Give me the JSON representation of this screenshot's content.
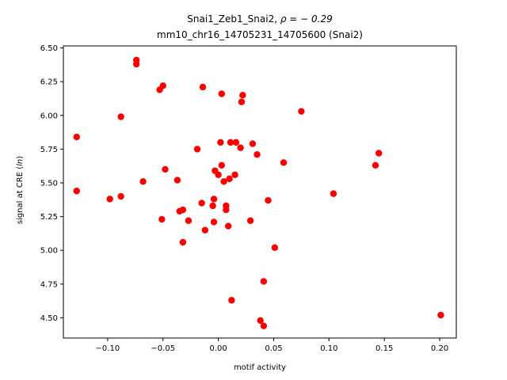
{
  "chart_data": {
    "type": "scatter",
    "title_line1": "Snai1_Zeb1_Snai2, ",
    "title_rho": "ρ = − 0.29",
    "title_line2": "mm10_chr16_14705231_14705600 (Snai2)",
    "xlabel": "motif activity",
    "ylabel_prefix": "signal at CRE (",
    "ylabel_italic": "ln",
    "ylabel_suffix": ")",
    "xlim": [
      -0.14,
      0.215
    ],
    "ylim": [
      4.35,
      6.515
    ],
    "xticks": [
      -0.1,
      -0.05,
      0.0,
      0.05,
      0.1,
      0.15,
      0.2
    ],
    "xtick_labels": [
      "−0.10",
      "−0.05",
      "0.00",
      "0.05",
      "0.10",
      "0.15",
      "0.20"
    ],
    "yticks": [
      4.5,
      4.75,
      5.0,
      5.25,
      5.5,
      5.75,
      6.0,
      6.25,
      6.5
    ],
    "ytick_labels": [
      "4.50",
      "4.75",
      "5.00",
      "5.25",
      "5.50",
      "5.75",
      "6.00",
      "6.25",
      "6.50"
    ],
    "marker_color": "#ff0000",
    "grid": false,
    "points": [
      {
        "x": -0.074,
        "y": 6.41
      },
      {
        "x": -0.074,
        "y": 6.38
      },
      {
        "x": -0.05,
        "y": 6.22
      },
      {
        "x": -0.053,
        "y": 6.19
      },
      {
        "x": -0.014,
        "y": 6.21
      },
      {
        "x": 0.003,
        "y": 6.16
      },
      {
        "x": 0.022,
        "y": 6.15
      },
      {
        "x": 0.021,
        "y": 6.1
      },
      {
        "x": 0.075,
        "y": 6.03
      },
      {
        "x": -0.088,
        "y": 5.99
      },
      {
        "x": -0.128,
        "y": 5.84
      },
      {
        "x": 0.002,
        "y": 5.8
      },
      {
        "x": 0.011,
        "y": 5.8
      },
      {
        "x": 0.016,
        "y": 5.8
      },
      {
        "x": 0.031,
        "y": 5.79
      },
      {
        "x": -0.019,
        "y": 5.75
      },
      {
        "x": 0.02,
        "y": 5.76
      },
      {
        "x": 0.035,
        "y": 5.71
      },
      {
        "x": 0.145,
        "y": 5.72
      },
      {
        "x": 0.059,
        "y": 5.65
      },
      {
        "x": 0.142,
        "y": 5.63
      },
      {
        "x": 0.003,
        "y": 5.63
      },
      {
        "x": -0.048,
        "y": 5.6
      },
      {
        "x": -0.003,
        "y": 5.59
      },
      {
        "x": 0.0,
        "y": 5.56
      },
      {
        "x": 0.015,
        "y": 5.56
      },
      {
        "x": 0.01,
        "y": 5.53
      },
      {
        "x": 0.005,
        "y": 5.51
      },
      {
        "x": -0.037,
        "y": 5.52
      },
      {
        "x": -0.068,
        "y": 5.51
      },
      {
        "x": -0.128,
        "y": 5.44
      },
      {
        "x": 0.104,
        "y": 5.42
      },
      {
        "x": -0.088,
        "y": 5.4
      },
      {
        "x": -0.098,
        "y": 5.38
      },
      {
        "x": -0.004,
        "y": 5.38
      },
      {
        "x": 0.045,
        "y": 5.37
      },
      {
        "x": -0.015,
        "y": 5.35
      },
      {
        "x": -0.005,
        "y": 5.33
      },
      {
        "x": 0.007,
        "y": 5.33
      },
      {
        "x": 0.007,
        "y": 5.3
      },
      {
        "x": -0.032,
        "y": 5.3
      },
      {
        "x": -0.035,
        "y": 5.29
      },
      {
        "x": -0.051,
        "y": 5.23
      },
      {
        "x": -0.027,
        "y": 5.22
      },
      {
        "x": 0.029,
        "y": 5.22
      },
      {
        "x": -0.004,
        "y": 5.21
      },
      {
        "x": 0.009,
        "y": 5.18
      },
      {
        "x": -0.012,
        "y": 5.15
      },
      {
        "x": -0.032,
        "y": 5.06
      },
      {
        "x": 0.051,
        "y": 5.02
      },
      {
        "x": 0.041,
        "y": 4.77
      },
      {
        "x": 0.012,
        "y": 4.63
      },
      {
        "x": 0.201,
        "y": 4.52
      },
      {
        "x": 0.038,
        "y": 4.48
      },
      {
        "x": 0.041,
        "y": 4.44
      }
    ]
  }
}
